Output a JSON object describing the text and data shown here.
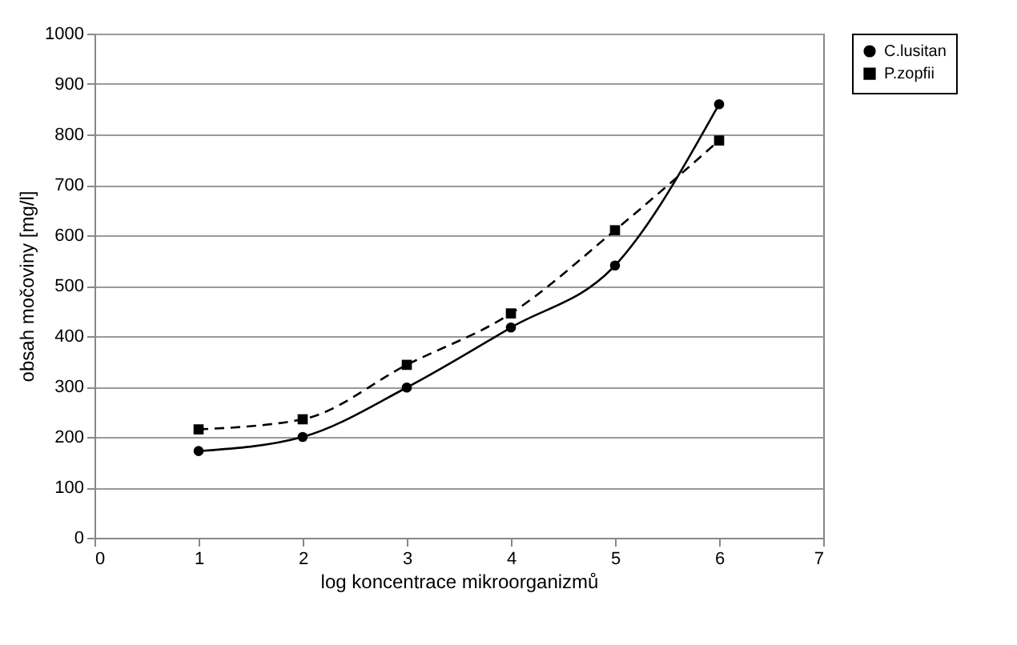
{
  "chart_data": {
    "type": "line",
    "xlabel": "log koncentrace mikroorganizmů",
    "ylabel": "obsah močoviny [mg/l]",
    "x": [
      1,
      2,
      3,
      4,
      5,
      6
    ],
    "series": [
      {
        "name": "C.lusitan",
        "color": "#000000",
        "marker": "circle",
        "line_style": "solid",
        "values": [
          172,
          200,
          298,
          417,
          540,
          860
        ]
      },
      {
        "name": "P.zopfii",
        "color": "#000000",
        "marker": "square",
        "line_style": "dashed",
        "values": [
          215,
          235,
          343,
          445,
          610,
          788
        ]
      }
    ],
    "xlim": [
      0,
      7
    ],
    "xticks": [
      0,
      1,
      2,
      3,
      4,
      5,
      6,
      7
    ],
    "ylim": [
      0,
      1000
    ],
    "yticks": [
      0,
      100,
      200,
      300,
      400,
      500,
      600,
      700,
      800,
      900,
      1000
    ],
    "grid": "y",
    "legend": "right"
  }
}
